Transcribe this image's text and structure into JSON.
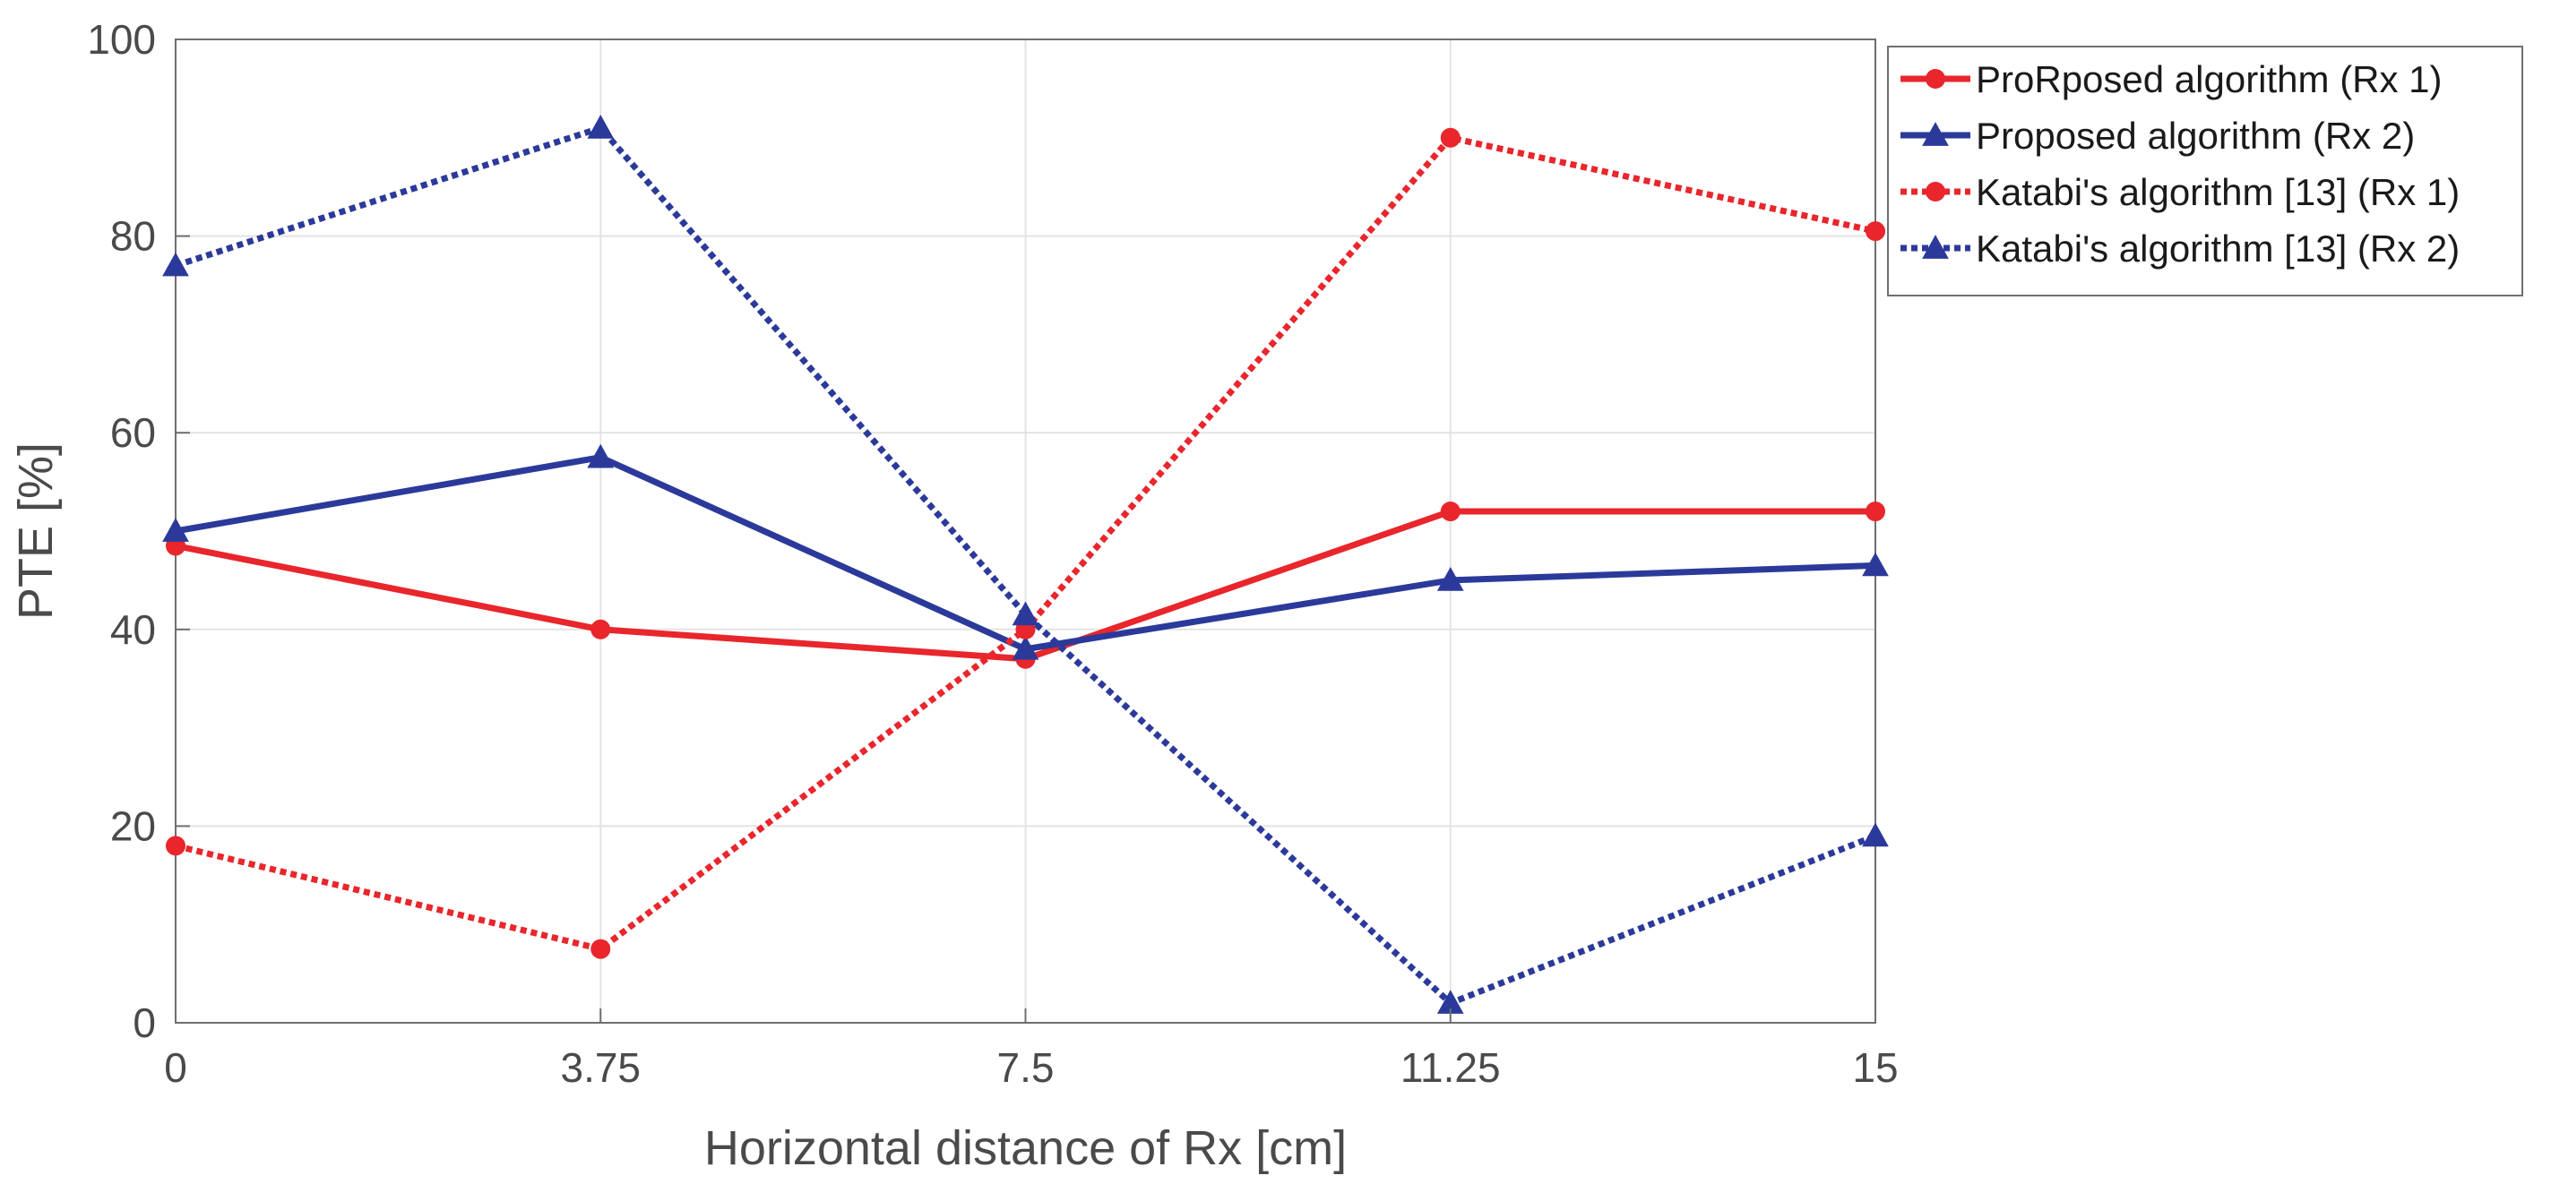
{
  "chart_data": {
    "type": "line",
    "title": "",
    "xlabel": "Horizontal distance of Rx [cm]",
    "ylabel": "PTE [%]",
    "x": [
      0,
      3.75,
      7.5,
      11.25,
      15
    ],
    "x_tick_labels": [
      "0",
      "3.75",
      "7.5",
      "11.25",
      "15"
    ],
    "y_ticks": [
      0,
      20,
      40,
      60,
      80,
      100
    ],
    "y_tick_labels": [
      "0",
      "20",
      "40",
      "60",
      "80",
      "100"
    ],
    "xlim": [
      0,
      15
    ],
    "ylim": [
      0,
      100
    ],
    "grid": true,
    "legend_position": "outside-top-right",
    "series": [
      {
        "name": "ProRposed algorithm (Rx 1)",
        "values": [
          48.5,
          40,
          37,
          52,
          52
        ],
        "color": "#e8262c",
        "line_style": "solid",
        "marker": "circle"
      },
      {
        "name": "Proposed algorithm (Rx 2)",
        "values": [
          50,
          57.5,
          38,
          45,
          46.5
        ],
        "color": "#2b3a9a",
        "line_style": "solid",
        "marker": "triangle"
      },
      {
        "name": "Katabi's algorithm [13] (Rx 1)",
        "values": [
          18,
          7.5,
          40,
          90,
          80.5
        ],
        "color": "#e8262c",
        "line_style": "dotted",
        "marker": "circle"
      },
      {
        "name": "Katabi's algorithm [13] (Rx 2)",
        "values": [
          77,
          91,
          41.5,
          2,
          19
        ],
        "color": "#2b3a9a",
        "line_style": "dotted",
        "marker": "triangle"
      }
    ]
  }
}
